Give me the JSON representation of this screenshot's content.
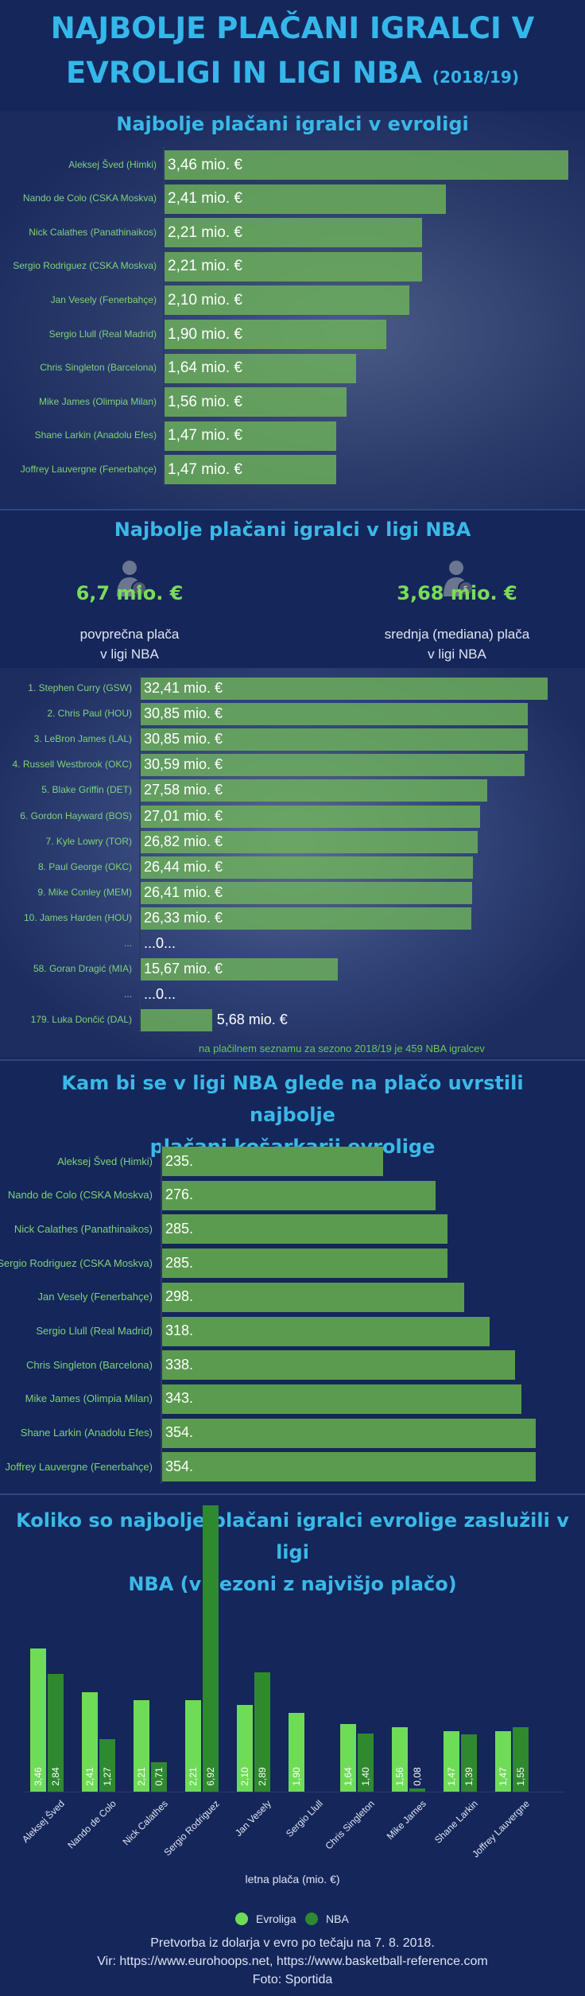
{
  "title": {
    "line1": "NAJBOLJE PLAČANI IGRALCI V",
    "line2": "EVROLIGI IN LIGI NBA",
    "season": "(2018/19)"
  },
  "colors": {
    "accent": "#35b7ea",
    "euroleague": "#6fdc58",
    "nba": "#2f8a2f",
    "bar": "#6eb25a"
  },
  "chart_data": [
    {
      "type": "bar",
      "title": "Najbolje plačani igralci v evroligi",
      "categories": [
        "Aleksej Šved (Himki)",
        "Nando de Colo (CSKA Moskva)",
        "Nick Calathes (Panathinaikos)",
        "Sergio Rodriguez (CSKA Moskva)",
        "Jan Vesely (Fenerbahçe)",
        "Sergio Llull (Real Madrid)",
        "Chris Singleton (Barcelona)",
        "Mike James (Olimpia Milan)",
        "Shane Larkin (Anadolu Efes)",
        "Joffrey Lauvergne (Fenerbahçe)"
      ],
      "values": [
        3.46,
        2.41,
        2.21,
        2.21,
        2.1,
        1.9,
        1.64,
        1.56,
        1.47,
        1.47
      ],
      "labels": [
        "3,46 mio. €",
        "2,41 mio. €",
        "2,21 mio. €",
        "2,21 mio. €",
        "2,10 mio. €",
        "1,90 mio. €",
        "1,64 mio. €",
        "1,56 mio. €",
        "1,47 mio. €",
        "1,47 mio. €"
      ]
    },
    {
      "type": "bar",
      "title": "Najbolje plačani igralci v ligi NBA",
      "categories": [
        "1. Stephen Curry (GSW)",
        "2. Chris Paul (HOU)",
        "3. LeBron James (LAL)",
        "4. Russell Westbrook (OKC)",
        "5. Blake Griffin (DET)",
        "6. Gordon Hayward (BOS)",
        "7. Kyle Lowry (TOR)",
        "8. Paul George (OKC)",
        "9. Mike Conley (MEM)",
        "10. James Harden (HOU)",
        "...",
        "58. Goran Dragić (MIA)",
        "...",
        "179. Luka Dončić (DAL)"
      ],
      "values": [
        32.41,
        30.85,
        30.85,
        30.59,
        27.58,
        27.01,
        26.82,
        26.44,
        26.41,
        26.33,
        null,
        15.67,
        null,
        5.68
      ],
      "labels": [
        "32,41 mio. €",
        "30,85 mio. €",
        "30,85 mio. €",
        "30,59 mio. €",
        "27,58 mio. €",
        "27,01 mio. €",
        "26,82 mio. €",
        "26,44 mio. €",
        "26,41 mio. €",
        "26,33 mio. €",
        "...0...",
        "15,67 mio. €",
        "...0...",
        "5,68 mio. €"
      ],
      "stats": [
        {
          "value": "6,7 mio. €",
          "line1": "povprečna plača",
          "line2": "v ligi NBA"
        },
        {
          "value": "3,68 mio. €",
          "line1": "srednja (mediana) plača",
          "line2": "v ligi NBA"
        }
      ],
      "note": "na plačilnem seznamu za sezono 2018/19 je 459 NBA igralcev"
    },
    {
      "type": "bar",
      "title_line1": "Kam bi se v ligi NBA glede na plačo uvrstili najbolje",
      "title_line2": "plačani košarkarji evrolige",
      "categories": [
        "Aleksej Šved (Himki)",
        "Nando de Colo (CSKA Moskva)",
        "Nick Calathes (Panathinaikos)",
        "Sergio Rodriguez (CSKA Moskva)",
        "Jan Vesely (Fenerbahçe)",
        "Sergio Llull (Real Madrid)",
        "Chris Singleton (Barcelona)",
        "Mike James (Olimpia Milan)",
        "Shane Larkin (Anadolu Efes)",
        "Joffrey Lauvergne (Fenerbahçe)"
      ],
      "values": [
        235,
        276,
        285,
        285,
        298,
        318,
        338,
        343,
        354,
        354
      ],
      "labels": [
        "235.",
        "276.",
        "285.",
        "285.",
        "298.",
        "318.",
        "338.",
        "343.",
        "354.",
        "354."
      ]
    },
    {
      "type": "bar",
      "title_line1": "Koliko so najbolje plačani igralci evrolige zaslužili v ligi",
      "title_line2": "NBA (v sezoni z najvišjo plačo)",
      "categories": [
        "Aleksej Šved",
        "Nando de Colo",
        "Nick Calathes",
        "Sergio Rodriguez",
        "Jan Vesely",
        "Sergio Llull",
        "Chris Singleton",
        "Mike James",
        "Shane Larkin",
        "Joffrey Lauvergne"
      ],
      "series": [
        {
          "name": "Evroliga",
          "values": [
            3.46,
            2.41,
            2.21,
            2.21,
            2.1,
            1.9,
            1.64,
            1.56,
            1.47,
            1.47
          ],
          "labels": [
            "3,46",
            "2,41",
            "2,21",
            "2,21",
            "2,10",
            "1,90",
            "1,64",
            "1,56",
            "1,47",
            "1,47"
          ]
        },
        {
          "name": "NBA",
          "values": [
            2.84,
            1.27,
            0.71,
            6.92,
            2.89,
            null,
            1.4,
            0.08,
            1.39,
            1.55
          ],
          "labels": [
            "2,84",
            "1,27",
            "0,71",
            "6,92",
            "2,89",
            "",
            "1,40",
            "0,08",
            "1,39",
            "1,55"
          ]
        }
      ],
      "xlabel": "letna plača (mio. €)",
      "legend": "bottom"
    }
  ],
  "footer": {
    "line1": "Pretvorba iz dolarja v evro po tečaju na 7. 8. 2018.",
    "line2": "Vir: https://www.eurohoops.net, https://www.basketball-reference.com",
    "line3": "Foto: Sportida"
  }
}
